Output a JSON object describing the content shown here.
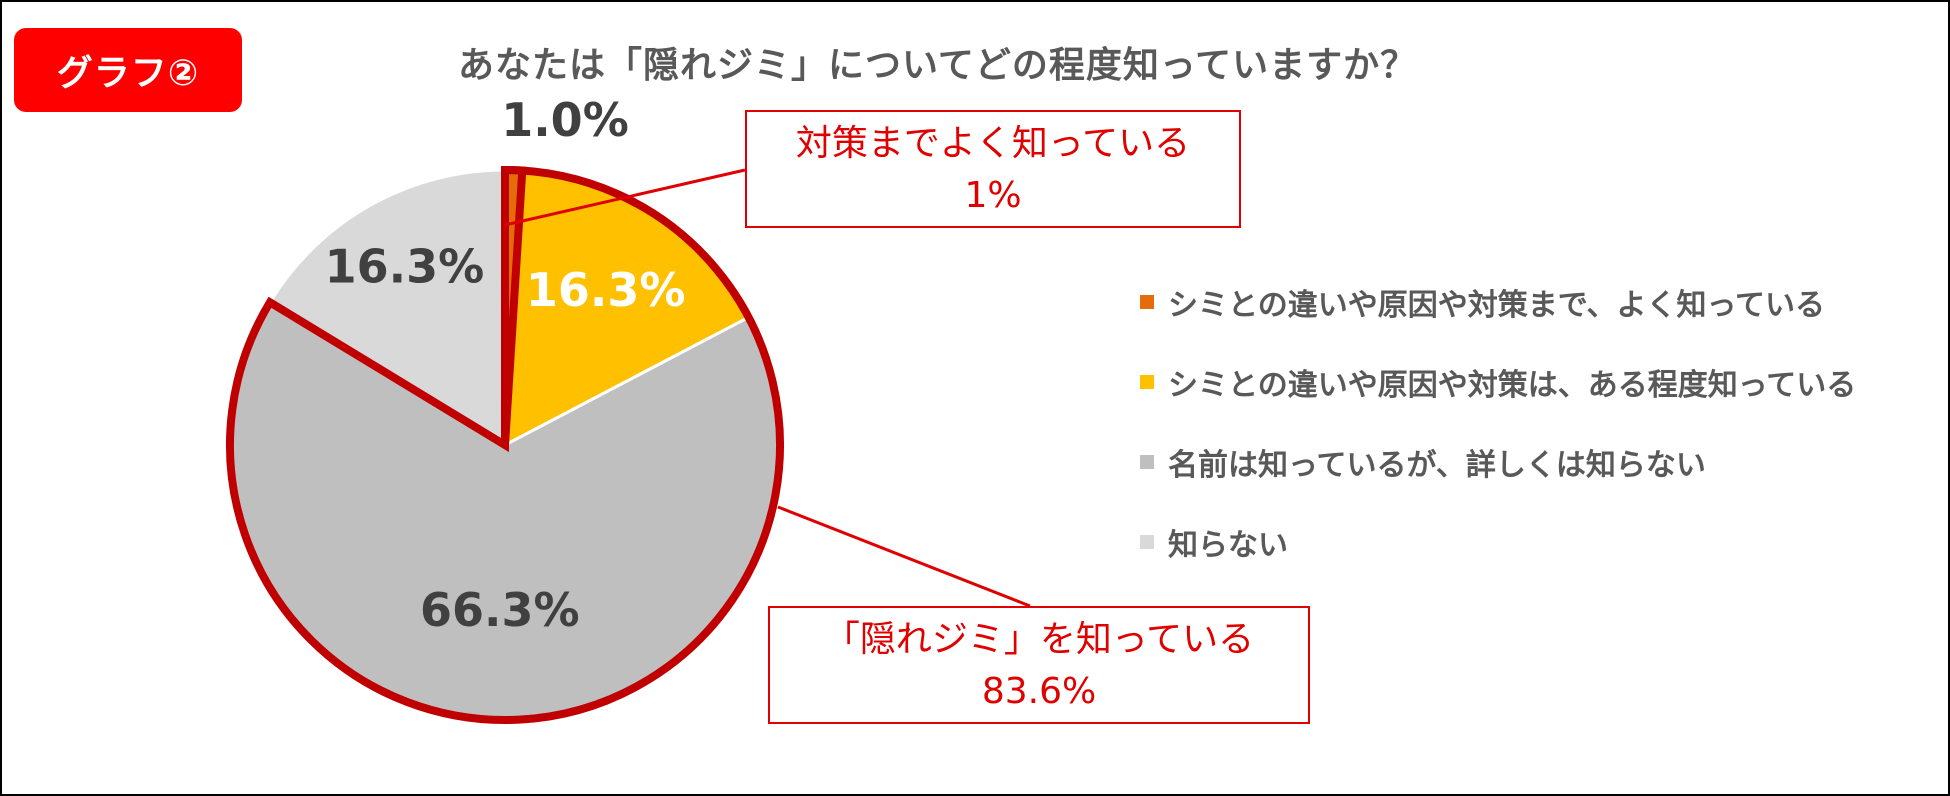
{
  "badge": "グラフ②",
  "chart_data": {
    "type": "pie",
    "title": "あなたは「隠れジミ」についてどの程度知っていますか？",
    "series": [
      {
        "name": "シミとの違いや原因や対策まで、よく知っている",
        "value": 1.0,
        "label": "1.0%",
        "color": "#e46c0a"
      },
      {
        "name": "シミとの違いや原因や対策は、ある程度知っている",
        "value": 16.3,
        "label": "16.3%",
        "color": "#ffc000"
      },
      {
        "name": "名前は知っているが、詳しくは知らない",
        "value": 66.3,
        "label": "66.3%",
        "color": "#bfbfbf"
      },
      {
        "name": "知らない",
        "value": 16.3,
        "label": "16.3%",
        "color": "#d9d9d9"
      }
    ],
    "legend_position": "right",
    "start_angle": "12 o'clock, clockwise"
  },
  "callouts": {
    "top": {
      "line1": "対策までよく知っている",
      "line2": "1%"
    },
    "bottom": {
      "line1": "「隠れジミ」を知っている",
      "line2": "83.6%"
    }
  },
  "colors": {
    "highlight": "#c00000",
    "callout": "#e00000",
    "label_dark": "#404040",
    "label_light": "#ffffff"
  }
}
